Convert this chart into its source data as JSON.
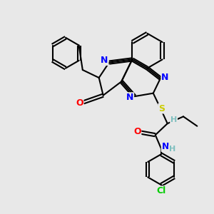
{
  "background_color": "#e8e8e8",
  "bond_color": "#000000",
  "atom_colors": {
    "N": "#0000ff",
    "O": "#ff0000",
    "S": "#cccc00",
    "Cl": "#00cc00",
    "H": "#7fbfbf",
    "C": "#000000"
  },
  "figsize": [
    3.0,
    3.0
  ],
  "dpi": 100
}
